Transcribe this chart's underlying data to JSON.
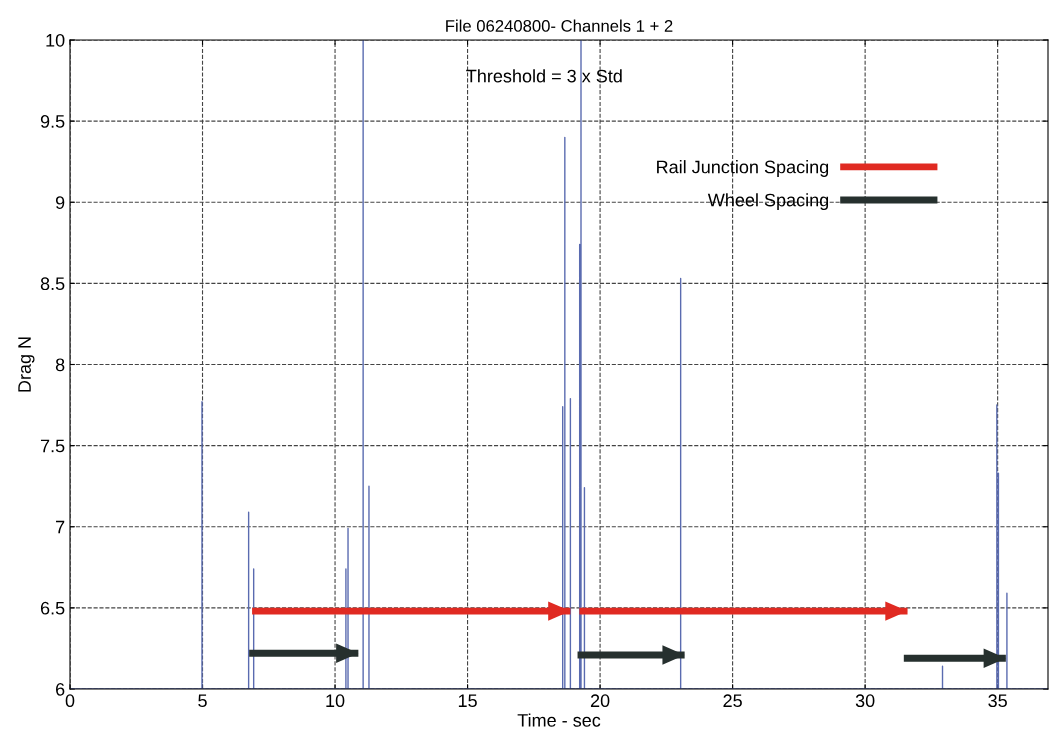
{
  "chart_data": {
    "type": "line",
    "title": "File 06240800- Channels 1 + 2",
    "xlabel": "Time - sec",
    "ylabel": "Drag N",
    "annotations": [
      "Threshold = 3 x Std"
    ],
    "xlim": [
      0,
      36.9
    ],
    "ylim": [
      6,
      10
    ],
    "xticks": [
      0,
      5,
      10,
      15,
      20,
      25,
      30,
      35
    ],
    "yticks": [
      6,
      6.5,
      7,
      7.5,
      8,
      8.5,
      9,
      9.5,
      10
    ],
    "grid": true,
    "legend": "top right",
    "series": [
      {
        "color": "#5a6bb0",
        "x": [
          0,
          4.98,
          4.98,
          4.98,
          6.74,
          6.74,
          6.74,
          6.93,
          6.93,
          6.93,
          10.41,
          10.41,
          10.41,
          10.49,
          10.49,
          10.49,
          11.06,
          11.06,
          11.06,
          11.28,
          11.28,
          11.28,
          18.59,
          18.59,
          18.59,
          18.67,
          18.67,
          18.67,
          18.88,
          18.88,
          18.88,
          19.23,
          19.23,
          19.23,
          19.28,
          19.28,
          19.28,
          19.41,
          19.41,
          19.41,
          23.04,
          23.04,
          23.04,
          32.92,
          32.92,
          32.92,
          34.97,
          34.97,
          34.97,
          35.03,
          35.03,
          35.03,
          35.35,
          35.35,
          35.35,
          36.9
        ],
        "values": [
          6,
          6,
          7.77,
          6,
          6,
          7.09,
          6,
          6,
          6.74,
          6,
          6,
          6.74,
          6,
          6,
          6.99,
          6,
          6,
          10,
          6,
          6,
          7.25,
          6,
          6,
          7.74,
          6,
          6,
          9.4,
          6,
          6,
          7.79,
          6,
          6,
          8.74,
          6,
          6,
          10,
          6,
          6,
          7.24,
          6,
          6,
          8.53,
          6,
          6,
          6.14,
          6,
          6,
          7.75,
          6,
          6,
          7.33,
          6,
          6,
          6.59,
          6,
          6
        ]
      },
      {
        "name": "Rail Junction Spacing",
        "color": "#e02a22",
        "x": [
          6.87,
          18.88,
          null,
          19.22,
          31.6
        ],
        "values": [
          6.48,
          6.48,
          null,
          6.48,
          6.48
        ]
      },
      {
        "name": "Wheel Spacing",
        "color": "#26302e",
        "x": [
          6.76,
          10.88,
          null,
          19.15,
          23.19,
          null,
          31.46,
          35.31
        ],
        "values": [
          6.22,
          6.22,
          null,
          6.21,
          6.21,
          null,
          6.19,
          6.19
        ]
      }
    ]
  }
}
